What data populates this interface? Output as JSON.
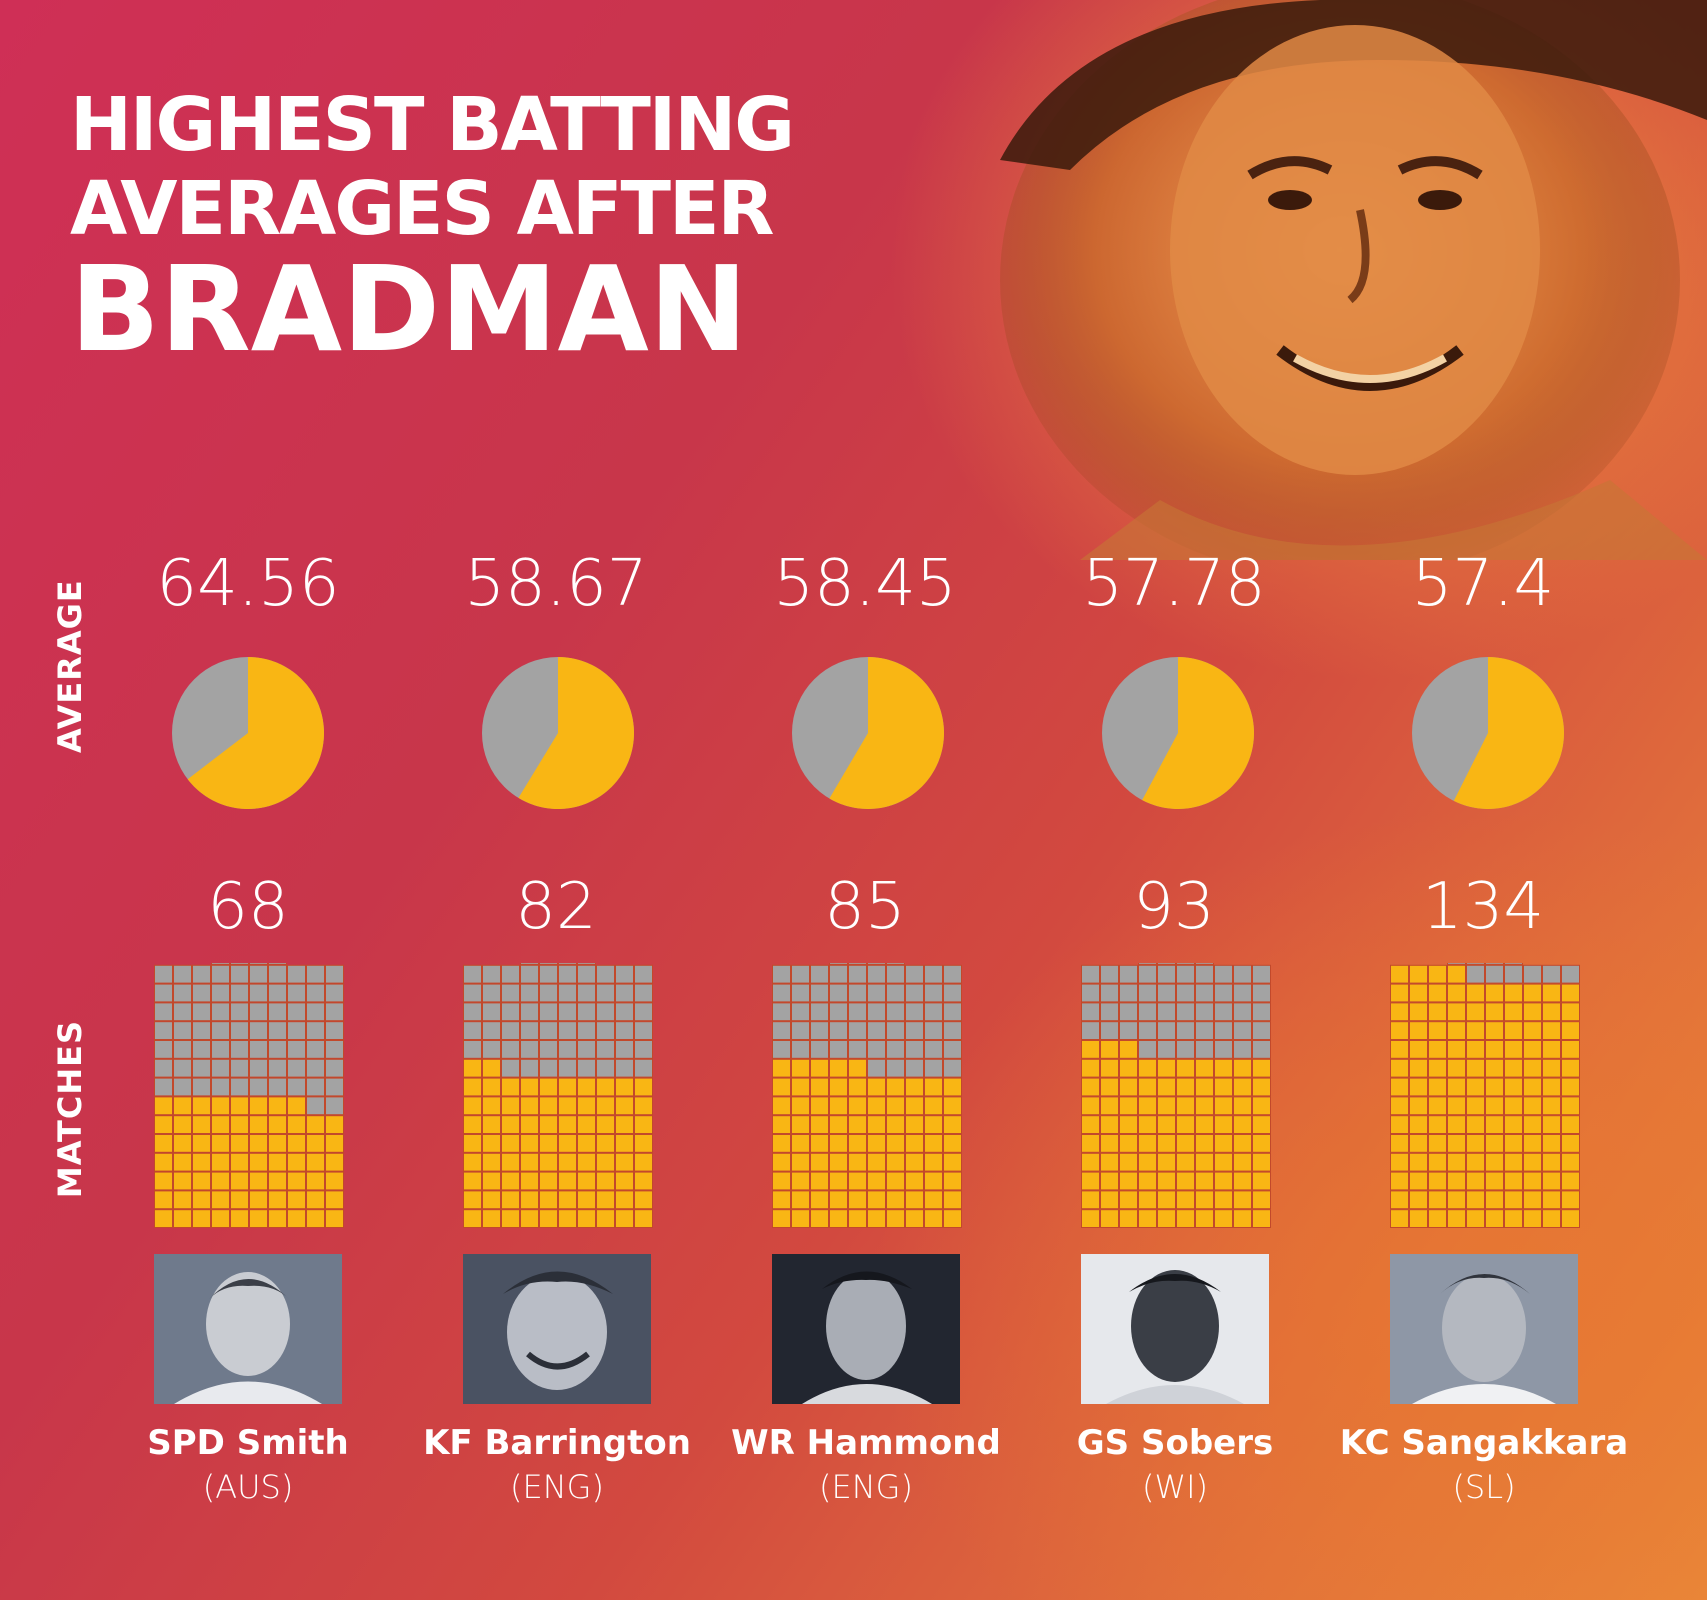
{
  "title": {
    "line1": "HIGHEST BATTING",
    "line2": "AVERAGES AFTER",
    "line3": "BRADMAN"
  },
  "labels": {
    "average": "AVERAGE",
    "matches": "MATCHES"
  },
  "colors": {
    "filled": "#f9b614",
    "empty": "#a3a3a3",
    "text": "#ffffff",
    "gridline": "#c2492b"
  },
  "chart_data": {
    "type": "pictograph",
    "categories": [
      "SPD Smith",
      "KF Barrington",
      "WR Hammond",
      "GS Sobers",
      "KC Sangakkara"
    ],
    "series": [
      {
        "name": "AVERAGE",
        "values": [
          64.56,
          58.67,
          58.45,
          57.78,
          57.4
        ]
      },
      {
        "name": "MATCHES",
        "values": [
          68,
          82,
          85,
          93,
          134
        ]
      }
    ],
    "pie_max": 99.94,
    "grid_total": 134
  },
  "players": [
    {
      "name": "SPD Smith",
      "country": "(AUS)",
      "average": "64.56",
      "matches": "68"
    },
    {
      "name": "KF Barrington",
      "country": "(ENG)",
      "average": "58.67",
      "matches": "82"
    },
    {
      "name": "WR Hammond",
      "country": "(ENG)",
      "average": "58.45",
      "matches": "85"
    },
    {
      "name": "GS Sobers",
      "country": "(WI)",
      "average": "57.78",
      "matches": "93"
    },
    {
      "name": "KC Sangakkara",
      "country": "(SL)",
      "average": "57.4",
      "matches": "134"
    }
  ]
}
